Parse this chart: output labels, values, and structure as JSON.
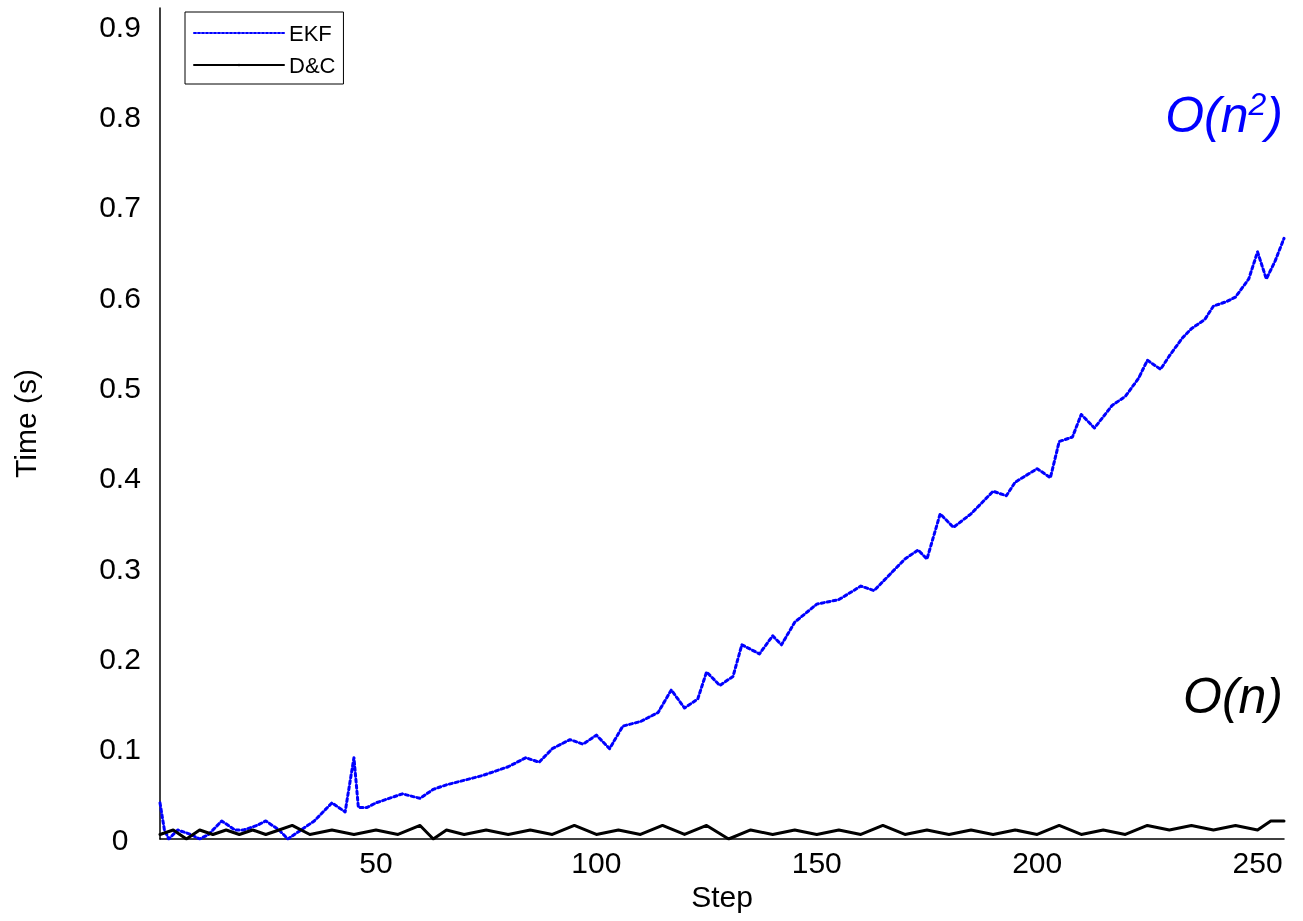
{
  "chart_data": {
    "type": "line",
    "xlabel": "Step",
    "ylabel": "Time (s)",
    "xlim": [
      1,
      256
    ],
    "xticks": [
      50,
      100,
      150,
      200,
      250
    ],
    "ylim": [
      0,
      0.92
    ],
    "yticks": [
      0,
      0.1,
      0.2,
      0.3,
      0.4,
      0.5,
      0.6,
      0.7,
      0.8,
      0.9
    ],
    "grid": false,
    "legend": "top left",
    "marker": "none",
    "annotations": [
      "O(n$^{2}$)",
      "O(n)"
    ],
    "series": [
      {
        "name": "EKF",
        "color": "#0000ff",
        "line_style": "dotted",
        "x": [
          1,
          2,
          3,
          5,
          8,
          10,
          12,
          15,
          18,
          20,
          23,
          25,
          28,
          30,
          33,
          36,
          40,
          43,
          45,
          46,
          48,
          50,
          53,
          56,
          60,
          63,
          66,
          70,
          74,
          77,
          80,
          84,
          87,
          90,
          94,
          97,
          100,
          103,
          106,
          110,
          114,
          117,
          120,
          123,
          125,
          128,
          131,
          133,
          137,
          140,
          142,
          145,
          150,
          155,
          160,
          163,
          165,
          170,
          173,
          175,
          178,
          181,
          185,
          190,
          193,
          195,
          200,
          203,
          205,
          208,
          210,
          213,
          217,
          220,
          223,
          225,
          228,
          230,
          233,
          235,
          238,
          240,
          243,
          245,
          248,
          250,
          252,
          254,
          256
        ],
        "values": [
          0.04,
          0.01,
          0.0,
          0.01,
          0.005,
          0.0,
          0.005,
          0.02,
          0.01,
          0.01,
          0.015,
          0.02,
          0.01,
          0.0,
          0.01,
          0.02,
          0.04,
          0.03,
          0.09,
          0.035,
          0.035,
          0.04,
          0.045,
          0.05,
          0.045,
          0.055,
          0.06,
          0.065,
          0.07,
          0.075,
          0.08,
          0.09,
          0.085,
          0.1,
          0.11,
          0.105,
          0.115,
          0.1,
          0.125,
          0.13,
          0.14,
          0.165,
          0.145,
          0.155,
          0.185,
          0.17,
          0.18,
          0.215,
          0.205,
          0.225,
          0.215,
          0.24,
          0.26,
          0.265,
          0.28,
          0.275,
          0.285,
          0.31,
          0.32,
          0.31,
          0.36,
          0.345,
          0.36,
          0.385,
          0.38,
          0.395,
          0.41,
          0.4,
          0.44,
          0.445,
          0.47,
          0.455,
          0.48,
          0.49,
          0.51,
          0.53,
          0.52,
          0.535,
          0.555,
          0.565,
          0.575,
          0.59,
          0.595,
          0.6,
          0.62,
          0.65,
          0.62,
          0.64,
          0.665
        ]
      },
      {
        "name": "D&C",
        "color": "#000000",
        "line_style": "solid",
        "x": [
          1,
          4,
          7,
          10,
          13,
          16,
          19,
          22,
          25,
          28,
          31,
          35,
          40,
          45,
          50,
          55,
          60,
          63,
          66,
          70,
          75,
          80,
          85,
          90,
          95,
          100,
          105,
          110,
          115,
          120,
          125,
          130,
          135,
          140,
          145,
          150,
          155,
          160,
          165,
          170,
          175,
          180,
          185,
          190,
          195,
          200,
          205,
          210,
          215,
          220,
          225,
          230,
          235,
          240,
          245,
          250,
          253,
          256
        ],
        "values": [
          0.005,
          0.01,
          0.0,
          0.01,
          0.005,
          0.01,
          0.005,
          0.01,
          0.005,
          0.01,
          0.015,
          0.005,
          0.01,
          0.005,
          0.01,
          0.005,
          0.015,
          0.0,
          0.01,
          0.005,
          0.01,
          0.005,
          0.01,
          0.005,
          0.015,
          0.005,
          0.01,
          0.005,
          0.015,
          0.005,
          0.015,
          0.0,
          0.01,
          0.005,
          0.01,
          0.005,
          0.01,
          0.005,
          0.015,
          0.005,
          0.01,
          0.005,
          0.01,
          0.005,
          0.01,
          0.005,
          0.015,
          0.005,
          0.01,
          0.005,
          0.015,
          0.01,
          0.015,
          0.01,
          0.015,
          0.01,
          0.02,
          0.02
        ]
      }
    ]
  }
}
